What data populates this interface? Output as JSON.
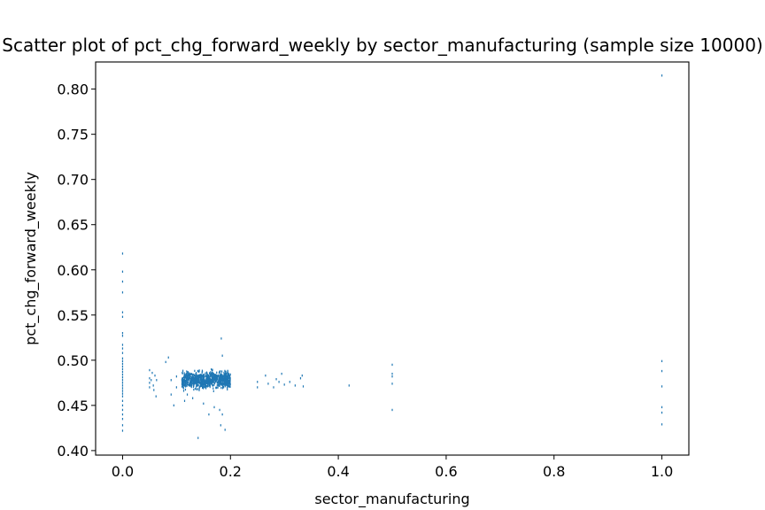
{
  "chart_data": {
    "type": "scatter",
    "title": "Scatter plot of pct_chg_forward_weekly by sector_manufacturing (sample size 10000)",
    "xlabel": "sector_manufacturing",
    "ylabel": "pct_chg_forward_weekly",
    "xlim": [
      -0.05,
      1.05
    ],
    "ylim": [
      0.395,
      0.83
    ],
    "xticks": [
      0.0,
      0.2,
      0.4,
      0.6,
      0.8,
      1.0
    ],
    "xtick_labels": [
      "0.0",
      "0.2",
      "0.4",
      "0.6",
      "0.8",
      "1.0"
    ],
    "yticks": [
      0.4,
      0.45,
      0.5,
      0.55,
      0.6,
      0.65,
      0.7,
      0.75,
      0.8
    ],
    "ytick_labels": [
      "0.40",
      "0.45",
      "0.50",
      "0.55",
      "0.60",
      "0.65",
      "0.70",
      "0.75",
      "0.80"
    ],
    "grid": false,
    "legend": "none",
    "marker_color": "#1f77b4",
    "series": [
      {
        "points": [
          [
            0.0,
            0.618
          ],
          [
            0.0,
            0.598
          ],
          [
            0.0,
            0.587
          ],
          [
            0.0,
            0.575
          ],
          [
            0.0,
            0.553
          ],
          [
            0.0,
            0.548
          ],
          [
            0.0,
            0.53
          ],
          [
            0.0,
            0.527
          ],
          [
            0.0,
            0.517
          ],
          [
            0.0,
            0.513
          ],
          [
            0.0,
            0.508
          ],
          [
            0.0,
            0.502
          ],
          [
            0.0,
            0.499
          ],
          [
            0.0,
            0.496
          ],
          [
            0.0,
            0.493
          ],
          [
            0.0,
            0.49
          ],
          [
            0.0,
            0.487
          ],
          [
            0.0,
            0.484
          ],
          [
            0.0,
            0.481
          ],
          [
            0.0,
            0.478
          ],
          [
            0.0,
            0.475
          ],
          [
            0.0,
            0.472
          ],
          [
            0.0,
            0.469
          ],
          [
            0.0,
            0.466
          ],
          [
            0.0,
            0.463
          ],
          [
            0.0,
            0.46
          ],
          [
            0.0,
            0.455
          ],
          [
            0.0,
            0.45
          ],
          [
            0.0,
            0.445
          ],
          [
            0.0,
            0.44
          ],
          [
            0.0,
            0.435
          ],
          [
            0.0,
            0.428
          ],
          [
            0.0,
            0.422
          ],
          [
            0.05,
            0.489
          ],
          [
            0.05,
            0.48
          ],
          [
            0.05,
            0.475
          ],
          [
            0.05,
            0.47
          ],
          [
            0.053,
            0.478
          ],
          [
            0.055,
            0.486
          ],
          [
            0.057,
            0.472
          ],
          [
            0.058,
            0.467
          ],
          [
            0.06,
            0.483
          ],
          [
            0.062,
            0.46
          ],
          [
            0.063,
            0.478
          ],
          [
            0.08,
            0.498
          ],
          [
            0.085,
            0.503
          ],
          [
            0.09,
            0.478
          ],
          [
            0.09,
            0.462
          ],
          [
            0.095,
            0.45
          ],
          [
            0.1,
            0.482
          ],
          [
            0.1,
            0.47
          ],
          [
            0.183,
            0.524
          ],
          [
            0.185,
            0.505
          ],
          [
            0.18,
            0.445
          ],
          [
            0.185,
            0.44
          ],
          [
            0.182,
            0.428
          ],
          [
            0.19,
            0.423
          ],
          [
            0.14,
            0.414
          ],
          [
            0.17,
            0.448
          ],
          [
            0.16,
            0.44
          ],
          [
            0.15,
            0.452
          ],
          [
            0.13,
            0.458
          ],
          [
            0.12,
            0.462
          ],
          [
            0.115,
            0.455
          ],
          [
            0.25,
            0.476
          ],
          [
            0.25,
            0.47
          ],
          [
            0.265,
            0.483
          ],
          [
            0.27,
            0.474
          ],
          [
            0.28,
            0.47
          ],
          [
            0.285,
            0.479
          ],
          [
            0.29,
            0.476
          ],
          [
            0.295,
            0.485
          ],
          [
            0.3,
            0.473
          ],
          [
            0.31,
            0.476
          ],
          [
            0.32,
            0.472
          ],
          [
            0.33,
            0.48
          ],
          [
            0.333,
            0.483
          ],
          [
            0.335,
            0.471
          ],
          [
            0.42,
            0.472
          ],
          [
            0.5,
            0.495
          ],
          [
            0.5,
            0.485
          ],
          [
            0.5,
            0.482
          ],
          [
            0.5,
            0.474
          ],
          [
            0.5,
            0.445
          ],
          [
            1.0,
            0.815
          ],
          [
            1.0,
            0.499
          ],
          [
            1.0,
            0.488
          ],
          [
            1.0,
            0.471
          ],
          [
            1.0,
            0.448
          ],
          [
            1.0,
            0.442
          ],
          [
            1.0,
            0.429
          ]
        ],
        "cluster": {
          "x_range": [
            0.11,
            0.2
          ],
          "y_center": 0.478,
          "y_spread": 0.018,
          "approx_count": 900
        }
      }
    ]
  }
}
